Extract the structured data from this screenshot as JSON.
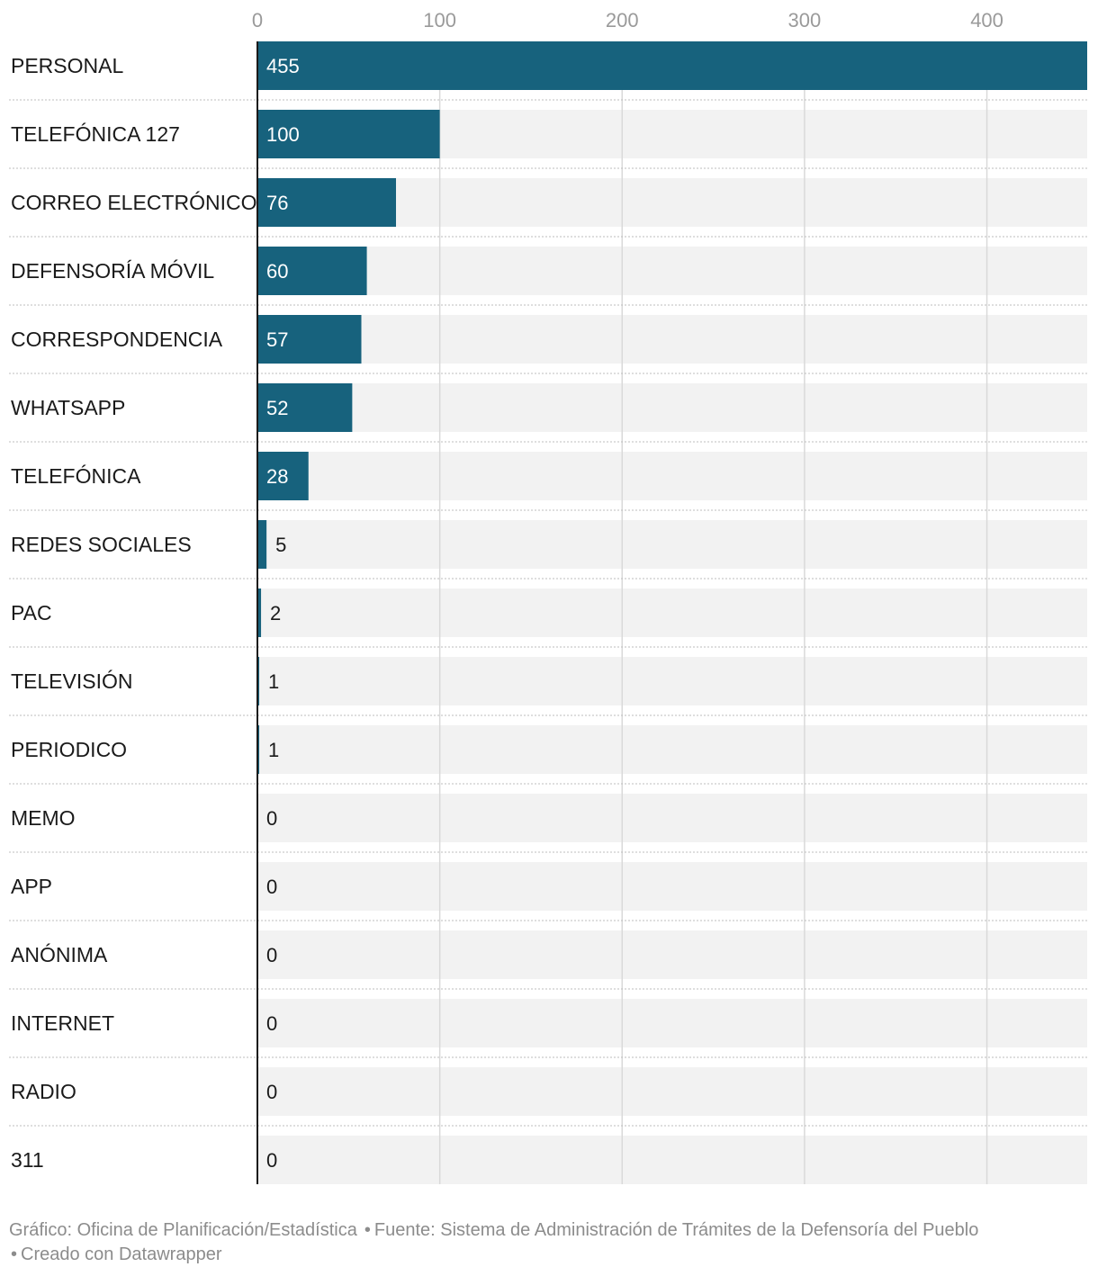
{
  "chart_data": {
    "type": "bar",
    "orientation": "horizontal",
    "title": "",
    "xlabel": "",
    "ylabel": "",
    "xlim": [
      0,
      455
    ],
    "ticks": [
      0,
      100,
      200,
      300,
      400
    ],
    "grid": true,
    "categories": [
      "PERSONAL",
      "TELEFÓNICA 127",
      "CORREO ELECTRÓNICO",
      "DEFENSORÍA MÓVIL",
      "CORRESPONDENCIA",
      "WHATSAPP",
      "TELEFÓNICA",
      "REDES SOCIALES",
      "PAC",
      "TELEVISIÓN",
      "PERIODICO",
      "MEMO",
      "APP",
      "ANÓNIMA",
      "INTERNET",
      "RADIO",
      "311"
    ],
    "values": [
      455,
      100,
      76,
      60,
      57,
      52,
      28,
      5,
      2,
      1,
      1,
      0,
      0,
      0,
      0,
      0,
      0
    ]
  },
  "colors": {
    "bar": "#17627d",
    "track": "#f2f2f2",
    "gridline": "#d9d9d9",
    "label_inside": "#ffffff",
    "label_outside": "#1a1a1a"
  },
  "footer": {
    "chart_credit": "Gráfico: Oficina de Planificación/Estadística",
    "source": "Fuente: Sistema de Administración de Trámites de la Defensoría del Pueblo",
    "made_with": "Creado con Datawrapper"
  }
}
